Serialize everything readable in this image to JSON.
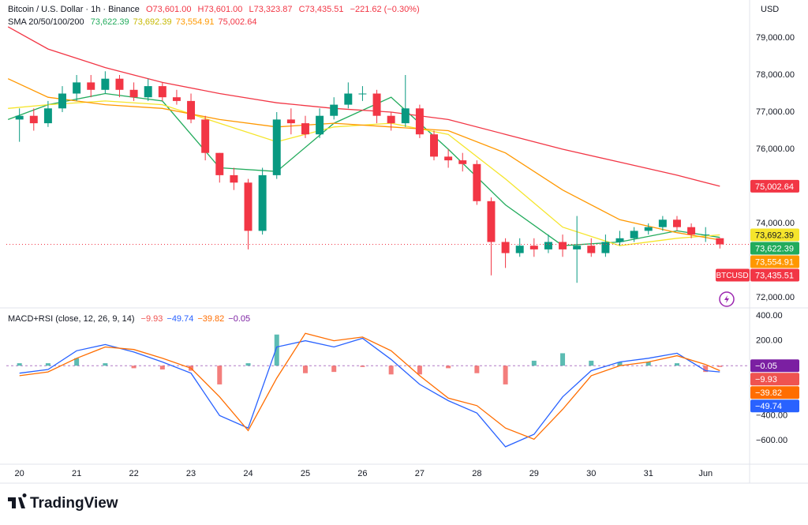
{
  "chart_data": [
    {
      "type": "candlestick",
      "title": "Bitcoin / U.S. Dollar · 1h · Binance",
      "ohlc_labels": [
        "O73,601.00",
        "H73,601.00",
        "L73,323.87",
        "C73,435.51",
        "−221.62 (−0.30%)"
      ],
      "currency": "USD",
      "symbol": "BTCUSD",
      "last_price_label": "73,435.51",
      "up_color": "#089981",
      "down_color": "#f23645",
      "x": [
        20,
        20.25,
        20.5,
        20.75,
        21,
        21.25,
        21.5,
        21.75,
        22,
        22.25,
        22.5,
        22.75,
        23,
        23.25,
        23.5,
        23.75,
        24,
        24.25,
        24.5,
        24.75,
        25,
        25.25,
        25.5,
        25.75,
        26,
        26.25,
        26.5,
        26.75,
        27,
        27.25,
        27.5,
        27.75,
        28,
        28.25,
        28.5,
        28.75,
        29,
        29.25,
        29.5,
        29.75,
        30,
        30.25,
        30.5,
        30.75,
        31,
        31.25,
        31.5,
        31.75,
        32,
        32.25
      ],
      "open": [
        76800,
        76900,
        76700,
        77100,
        77500,
        77800,
        77600,
        77900,
        77600,
        77400,
        77700,
        77400,
        77300,
        76800,
        75900,
        75300,
        75100,
        73800,
        75300,
        76800,
        76700,
        76400,
        76900,
        77200,
        77500,
        77500,
        76900,
        76700,
        77100,
        76400,
        75800,
        75700,
        75600,
        74600,
        73500,
        73200,
        73400,
        73300,
        73500,
        73300,
        73400,
        73200,
        73500,
        73600,
        73800,
        73900,
        74100,
        73900,
        73700,
        73601
      ],
      "high": [
        77100,
        77100,
        77300,
        77700,
        78000,
        78000,
        78100,
        78000,
        77800,
        77900,
        77800,
        77600,
        77500,
        76900,
        75900,
        75500,
        75200,
        75500,
        77000,
        77100,
        76900,
        77100,
        77400,
        77800,
        77700,
        77600,
        77000,
        78000,
        77200,
        76500,
        76000,
        75900,
        75700,
        74700,
        73600,
        73600,
        73600,
        73700,
        73700,
        74200,
        73600,
        73700,
        73800,
        73900,
        74000,
        74200,
        74200,
        74000,
        73900,
        73601
      ],
      "low": [
        76200,
        76500,
        76600,
        77000,
        77300,
        77400,
        77500,
        77400,
        77300,
        77300,
        77300,
        77200,
        76700,
        75700,
        75100,
        74900,
        73300,
        73700,
        75200,
        76400,
        76300,
        76300,
        76800,
        77100,
        77300,
        76700,
        76500,
        76600,
        76300,
        75700,
        75500,
        75400,
        74500,
        72600,
        72800,
        73100,
        73100,
        73200,
        73100,
        72400,
        73100,
        73100,
        73400,
        73500,
        73700,
        73800,
        73800,
        73600,
        73500,
        73323.87
      ],
      "close": [
        76900,
        76700,
        77100,
        77500,
        77800,
        77600,
        77900,
        77600,
        77400,
        77700,
        77400,
        77300,
        76800,
        75900,
        75300,
        75100,
        73800,
        75300,
        76800,
        76700,
        76400,
        76900,
        77200,
        77500,
        77500,
        76900,
        76700,
        77100,
        76400,
        75800,
        75700,
        75600,
        74600,
        73500,
        73200,
        73400,
        73300,
        73500,
        73300,
        73400,
        73200,
        73500,
        73600,
        73800,
        73900,
        74100,
        73900,
        73700,
        73700,
        73435.51
      ],
      "overlay_label": "SMA 20/50/100/200",
      "overlays": [
        {
          "color": "#22ab5c",
          "x": [
            19.8,
            20.5,
            21.5,
            22.5,
            23.5,
            24.5,
            25.5,
            26.5,
            27.5,
            28.5,
            29.5,
            30.5,
            31.5,
            32.25
          ],
          "values": [
            76800,
            77200,
            77500,
            77300,
            75500,
            75400,
            76700,
            77400,
            76000,
            74500,
            73400,
            73500,
            73800,
            73622.39
          ],
          "value_label": "73,622.39"
        },
        {
          "color": "#f5e52c",
          "x": [
            19.8,
            20.5,
            21.5,
            22.5,
            23.5,
            24.5,
            25.5,
            26.5,
            27.5,
            28.5,
            29.5,
            30.5,
            31.5,
            32.25
          ],
          "values": [
            77100,
            77200,
            77300,
            77200,
            76700,
            76200,
            76600,
            76700,
            76400,
            75200,
            73900,
            73400,
            73600,
            73692.39
          ],
          "value_label": "73,692.39"
        },
        {
          "color": "#ff9800",
          "x": [
            19.8,
            20.5,
            21.5,
            22.5,
            23.5,
            24.5,
            25.5,
            26.5,
            27.5,
            28.5,
            29.5,
            30.5,
            31.5,
            32.25
          ],
          "values": [
            77900,
            77400,
            77200,
            77100,
            76800,
            76600,
            76700,
            76600,
            76500,
            75900,
            74900,
            74100,
            73750,
            73554.91
          ],
          "value_label": "73,554.91"
        },
        {
          "color": "#f23645",
          "x": [
            19.8,
            20.5,
            21.5,
            22.5,
            23.5,
            24.5,
            25.5,
            26.5,
            27.5,
            28.5,
            29.5,
            30.5,
            31.5,
            32.25
          ],
          "values": [
            79300,
            78700,
            78200,
            77800,
            77500,
            77250,
            77100,
            77000,
            76800,
            76400,
            76000,
            75650,
            75300,
            75002.64
          ],
          "value_label": "75,002.64"
        }
      ],
      "xlim": [
        19.77,
        32.77
      ],
      "xticks": [
        20,
        21,
        22,
        23,
        24,
        25,
        26,
        27,
        28,
        29,
        30,
        31,
        {
          "value": 32,
          "label": "Jun"
        }
      ],
      "ylim": [
        71766,
        80021
      ],
      "yticks": [
        {
          "value": 72000,
          "label": "72,000.00"
        },
        {
          "value": 73000,
          "label": "73,000.00"
        },
        {
          "value": 74000,
          "label": "74,000.00"
        },
        {
          "value": 75000,
          "label": "75,000.00"
        },
        {
          "value": 76000,
          "label": "76,000.00"
        },
        {
          "value": 77000,
          "label": "77,000.00"
        },
        {
          "value": 78000,
          "label": "78,000.00"
        },
        {
          "value": 79000,
          "label": "79,000.00"
        }
      ]
    },
    {
      "type": "macd",
      "title": "MACD+RSI (close, 12, 26, 9, 14)",
      "x": [
        20,
        20.5,
        21,
        21.5,
        22,
        22.5,
        23,
        23.5,
        24,
        24.5,
        25,
        25.5,
        26,
        26.5,
        27,
        27.5,
        28,
        28.5,
        29,
        29.5,
        30,
        30.5,
        31,
        31.5,
        32,
        32.25
      ],
      "histogram": {
        "up_color": "#26a69a",
        "down_color": "#ef5350",
        "values": [
          20,
          20,
          60,
          20,
          -20,
          -30,
          -40,
          -150,
          20,
          250,
          -60,
          -50,
          -10,
          -70,
          -70,
          -20,
          -60,
          -150,
          40,
          100,
          40,
          30,
          30,
          20,
          -50,
          -9.93
        ],
        "value_label": "−9.93"
      },
      "macd": {
        "color": "#2962ff",
        "values": [
          -60,
          -30,
          120,
          170,
          110,
          30,
          -60,
          -400,
          -500,
          150,
          200,
          150,
          220,
          50,
          -150,
          -280,
          -380,
          -650,
          -550,
          -250,
          -40,
          30,
          60,
          100,
          -40,
          -49.74
        ],
        "value_label": "−49.74"
      },
      "signal": {
        "color": "#ff6d00",
        "values": [
          -80,
          -50,
          60,
          150,
          130,
          60,
          -20,
          -250,
          -520,
          -100,
          260,
          200,
          230,
          120,
          -80,
          -260,
          -320,
          -500,
          -590,
          -350,
          -80,
          0,
          30,
          80,
          10,
          -39.82
        ],
        "value_label": "−39.82"
      },
      "rsi": {
        "color": "#7b1fa2",
        "value": -0.05,
        "value_label": "−0.05"
      },
      "ylim": [
        -771,
        451
      ],
      "yticks": [
        {
          "value": 400,
          "label": "400.00"
        },
        {
          "value": 200,
          "label": "200.00"
        },
        {
          "value": -400,
          "label": "−400.00"
        },
        {
          "value": -600,
          "label": "−600.00"
        }
      ]
    }
  ],
  "branding": "TradingView"
}
